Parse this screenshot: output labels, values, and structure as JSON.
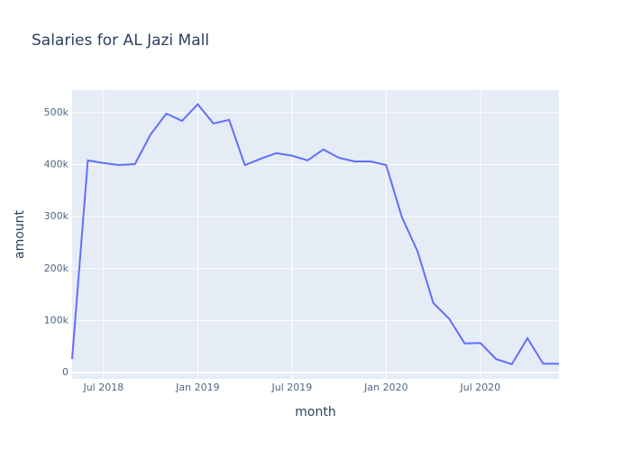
{
  "chart_data": {
    "type": "line",
    "title": "Salaries for AL Jazi Mall",
    "x_label": "month",
    "y_label": "amount",
    "x": [
      "2018-05",
      "2018-06",
      "2018-07",
      "2018-08",
      "2018-09",
      "2018-10",
      "2018-11",
      "2018-12",
      "2019-01",
      "2019-02",
      "2019-03",
      "2019-04",
      "2019-05",
      "2019-06",
      "2019-07",
      "2019-08",
      "2019-09",
      "2019-10",
      "2019-11",
      "2019-12",
      "2020-01",
      "2020-02",
      "2020-03",
      "2020-04",
      "2020-05",
      "2020-06",
      "2020-07",
      "2020-08",
      "2020-09",
      "2020-10",
      "2020-11",
      "2020-12"
    ],
    "series": [
      {
        "name": "amount",
        "color": "#636efa",
        "values": [
          26000,
          408000,
          403000,
          399000,
          401000,
          458000,
          498000,
          484000,
          516000,
          479000,
          486000,
          399000,
          411000,
          422000,
          417000,
          408000,
          429000,
          413000,
          406000,
          406000,
          399000,
          299000,
          233000,
          134000,
          104000,
          56000,
          57000,
          26000,
          16000,
          66000,
          17000,
          17000
        ]
      }
    ],
    "xlim": [
      "2018-05",
      "2020-12"
    ],
    "xticks": [
      {
        "value": "2018-07",
        "label": "Jul 2018"
      },
      {
        "value": "2019-01",
        "label": "Jan 2019"
      },
      {
        "value": "2019-07",
        "label": "Jul 2019"
      },
      {
        "value": "2020-01",
        "label": "Jan 2020"
      },
      {
        "value": "2020-07",
        "label": "Jul 2020"
      }
    ],
    "ylim": [
      -12000,
      543000
    ],
    "yticks": [
      0,
      {
        "value": 100000,
        "label": "100k"
      },
      {
        "value": 200000,
        "label": "200k"
      },
      {
        "value": 300000,
        "label": "300k"
      },
      {
        "value": 400000,
        "label": "400k"
      },
      {
        "value": 500000,
        "label": "500k"
      }
    ],
    "grid": true
  }
}
